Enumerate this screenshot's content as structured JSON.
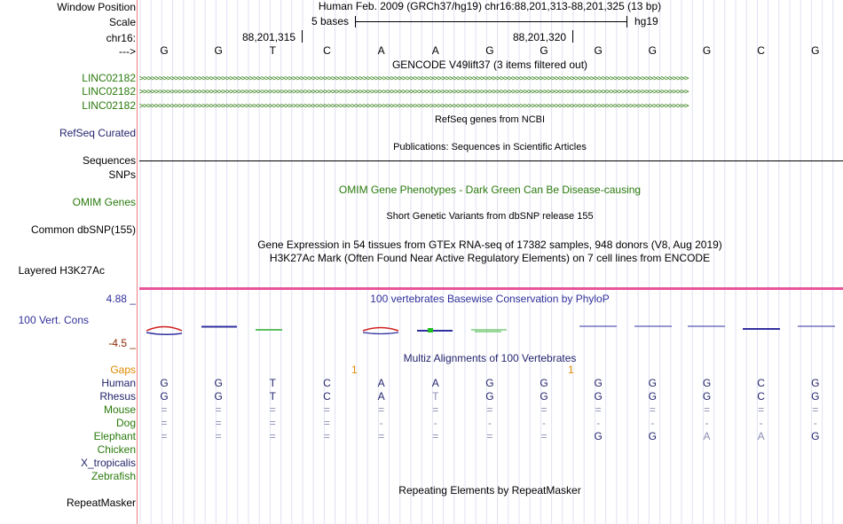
{
  "labels": {
    "window_position": "Window Position",
    "scale": "Scale",
    "chrom": "chr16:",
    "strand": "--->",
    "linc1": "LINC02182",
    "linc2": "LINC02182",
    "linc3": "LINC02182",
    "refseq": "RefSeq Curated",
    "sequences": "Sequences",
    "snps": "SNPs",
    "omim": "OMIM Genes",
    "common_dbsnp": "Common dbSNP(155)",
    "layered": "Layered H3K27Ac",
    "cons_max": "4.88 _",
    "cons_label": "100 Vert. Cons",
    "cons_min": "-4.5 _",
    "gaps": "Gaps",
    "human": "Human",
    "rhesus": "Rhesus",
    "mouse": "Mouse",
    "dog": "Dog",
    "elephant": "Elephant",
    "chicken": "Chicken",
    "xtrop": "X_tropicalis",
    "zebrafish": "Zebrafish",
    "repeatmasker": "RepeatMasker"
  },
  "header": {
    "assembly_position": "Human Feb. 2009 (GRCh37/hg19)   chr16:88,201,313-88,201,325 (13 bp)",
    "scale_text": "5 bases",
    "scale_db": "hg19",
    "pos1": "88,201,315",
    "pos2": "88,201,320"
  },
  "sequence": [
    "G",
    "G",
    "T",
    "C",
    "A",
    "A",
    "G",
    "G",
    "G",
    "G",
    "G",
    "C",
    "G"
  ],
  "tracks": {
    "gencode": "GENCODE V49lift37 (3 items filtered out)",
    "refseq_title": "RefSeq genes from NCBI",
    "publications": "Publications: Sequences in Scientific Articles",
    "omim_title": "OMIM Gene Phenotypes - Dark Green Can Be Disease-causing",
    "dbsnp_title": "Short Genetic Variants from dbSNP release 155",
    "gtex_title": "Gene Expression in 54 tissues from GTEx RNA-seq of 17382 samples, 948 donors (V8, Aug 2019)",
    "h3k27ac_title": "H3K27Ac Mark (Often Found Near Active Regulatory Elements) on 7 cell lines from ENCODE",
    "phylop_title": "100 vertebrates Basewise Conservation by PhyloP",
    "multiz_title": "Multiz Alignments of 100 Vertebrates",
    "repeat_title": "Repeating Elements by RepeatMasker"
  },
  "gaps": [
    "1",
    "1"
  ],
  "alignment": {
    "human": [
      "G",
      "G",
      "T",
      "C",
      "A",
      "A",
      "G",
      "G",
      "G",
      "G",
      "G",
      "C",
      "G"
    ],
    "rhesus": [
      "G",
      "G",
      "T",
      "C",
      "A",
      "T",
      "G",
      "G",
      "G",
      "G",
      "G",
      "C",
      "G"
    ],
    "mouse": [
      "=",
      "=",
      "=",
      "=",
      "=",
      "=",
      "=",
      "=",
      "=",
      "=",
      "=",
      "=",
      "="
    ],
    "dog": [
      "=",
      "=",
      "=",
      "=",
      "-",
      "-",
      "-",
      "-",
      "-",
      "-",
      "-",
      "-",
      "-"
    ],
    "elephant": [
      "=",
      "=",
      "=",
      "=",
      "=",
      "=",
      "=",
      "=",
      "G",
      "G",
      "A",
      "A",
      "G"
    ]
  },
  "colors": {
    "label_green": "#2a7a0c",
    "label_navy": "#24246e",
    "phylop_blue": "#30309a",
    "gaps_orange": "#e08a00",
    "pink_bar": "#e8559a",
    "axis_red": "#8b2500"
  }
}
